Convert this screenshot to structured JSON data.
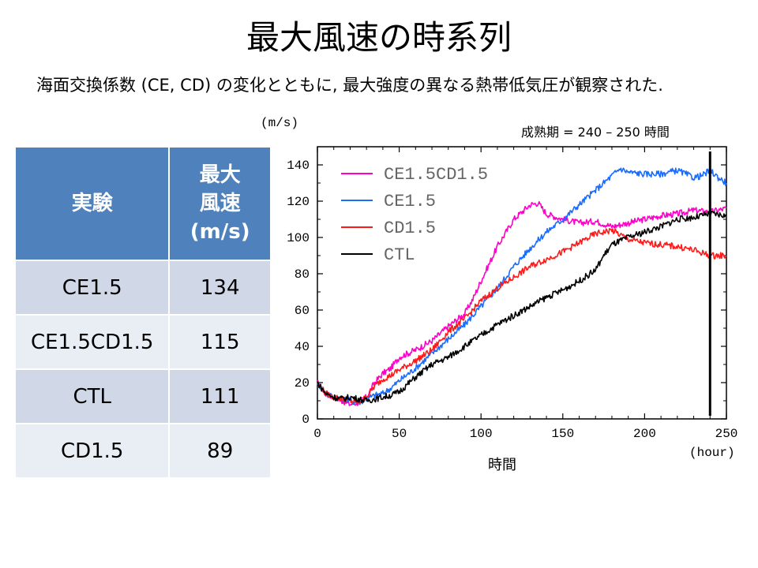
{
  "slide": {
    "title": "最大風速の時系列",
    "subtitle": "海面交換係数 (CE, CD) の変化とともに, 最大強度の異なる熱帯低気圧が観察された.",
    "period_note": "成熟期 = 240 – 250 時間"
  },
  "table": {
    "header_experiment": "実験",
    "header_wind": [
      "最大",
      "風速",
      "(m/s)"
    ],
    "rows": [
      {
        "experiment": "CE1.5",
        "max_wind": "134"
      },
      {
        "experiment": "CE1.5CD1.5",
        "max_wind": "115"
      },
      {
        "experiment": "CTL",
        "max_wind": "111"
      },
      {
        "experiment": "CD1.5",
        "max_wind": "89"
      }
    ]
  },
  "chart_data": {
    "type": "line",
    "title": "",
    "xlabel": "時間",
    "x_unit": "(hour)",
    "ylabel": "(m/s)",
    "xlim": [
      0,
      250
    ],
    "ylim": [
      0,
      150
    ],
    "xticks": [
      0,
      50,
      100,
      150,
      200,
      250
    ],
    "yticks": [
      0,
      20,
      40,
      60,
      80,
      100,
      120,
      140
    ],
    "legend_position": "top-left",
    "vertical_marker_x": 240,
    "series": [
      {
        "name": "CE1.5CD1.5",
        "color": "#ff00c8",
        "x": [
          0,
          5,
          10,
          15,
          20,
          25,
          30,
          35,
          40,
          45,
          50,
          60,
          70,
          80,
          90,
          95,
          100,
          110,
          120,
          125,
          130,
          135,
          140,
          150,
          160,
          170,
          180,
          190,
          200,
          210,
          220,
          230,
          240,
          250
        ],
        "y": [
          20,
          14,
          12,
          10,
          8,
          9,
          12,
          20,
          25,
          28,
          34,
          38,
          43,
          51,
          58,
          66,
          76,
          95,
          110,
          114,
          118,
          119,
          113,
          110,
          108,
          109,
          106,
          108,
          110,
          112,
          113,
          115,
          114,
          116
        ]
      },
      {
        "name": "CE1.5",
        "color": "#1a6cff",
        "x": [
          0,
          5,
          10,
          15,
          20,
          25,
          30,
          35,
          40,
          45,
          50,
          60,
          70,
          80,
          90,
          100,
          110,
          120,
          130,
          140,
          150,
          160,
          170,
          180,
          185,
          190,
          200,
          210,
          220,
          230,
          235,
          240,
          245,
          250
        ],
        "y": [
          20,
          14,
          12,
          11,
          10,
          9,
          11,
          13,
          14,
          17,
          21,
          28,
          36,
          44,
          52,
          62,
          72,
          84,
          94,
          103,
          110,
          118,
          126,
          134,
          138,
          136,
          135,
          135,
          137,
          133,
          134,
          137,
          133,
          130
        ]
      },
      {
        "name": "CD1.5",
        "color": "#ff1a1a",
        "x": [
          0,
          5,
          10,
          15,
          20,
          25,
          30,
          35,
          40,
          45,
          50,
          60,
          70,
          80,
          90,
          100,
          110,
          120,
          130,
          140,
          150,
          160,
          170,
          180,
          190,
          200,
          210,
          220,
          230,
          240,
          250
        ],
        "y": [
          20,
          14,
          12,
          11,
          10,
          9,
          12,
          18,
          22,
          24,
          27,
          32,
          38,
          48,
          55,
          65,
          72,
          78,
          84,
          88,
          92,
          97,
          102,
          104,
          99,
          97,
          96,
          95,
          93,
          90,
          90
        ]
      },
      {
        "name": "CTL",
        "color": "#000000",
        "x": [
          0,
          5,
          10,
          15,
          20,
          25,
          30,
          35,
          40,
          45,
          50,
          60,
          70,
          80,
          90,
          100,
          110,
          120,
          130,
          140,
          150,
          160,
          170,
          175,
          180,
          190,
          200,
          210,
          220,
          230,
          240,
          250
        ],
        "y": [
          20,
          14,
          12,
          11,
          12,
          11,
          10,
          11,
          12,
          13,
          15,
          23,
          30,
          34,
          40,
          46,
          52,
          57,
          62,
          67,
          71,
          76,
          82,
          90,
          96,
          100,
          103,
          106,
          110,
          111,
          113,
          112
        ]
      }
    ]
  }
}
